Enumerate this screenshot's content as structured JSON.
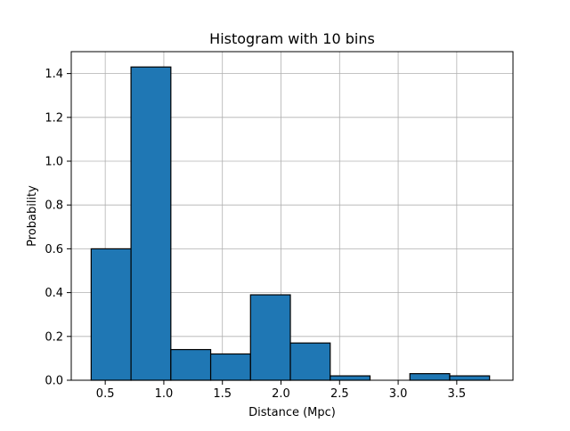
{
  "chart_data": {
    "type": "bar",
    "title": "Histogram with 10 bins",
    "xlabel": "Distance (Mpc)",
    "ylabel": "Probability",
    "xlim": [
      0.21,
      3.98
    ],
    "ylim": [
      0,
      1.5
    ],
    "grid": true,
    "bar_color": "#1f77b4",
    "edge_color": "#000000",
    "bin_edges": [
      0.38,
      0.72,
      1.06,
      1.4,
      1.74,
      2.08,
      2.42,
      2.76,
      3.1,
      3.44,
      3.78
    ],
    "values": [
      0.6,
      1.43,
      0.14,
      0.12,
      0.39,
      0.17,
      0.02,
      0.0,
      0.03,
      0.02
    ],
    "x_ticks": [
      0.5,
      1.0,
      1.5,
      2.0,
      2.5,
      3.0,
      3.5
    ],
    "x_tick_labels": [
      "0.5",
      "1.0",
      "1.5",
      "2.0",
      "2.5",
      "3.0",
      "3.5"
    ],
    "y_ticks": [
      0.0,
      0.2,
      0.4,
      0.6,
      0.8,
      1.0,
      1.2,
      1.4
    ],
    "y_tick_labels": [
      "0.0",
      "0.2",
      "0.4",
      "0.6",
      "0.8",
      "1.0",
      "1.2",
      "1.4"
    ]
  }
}
